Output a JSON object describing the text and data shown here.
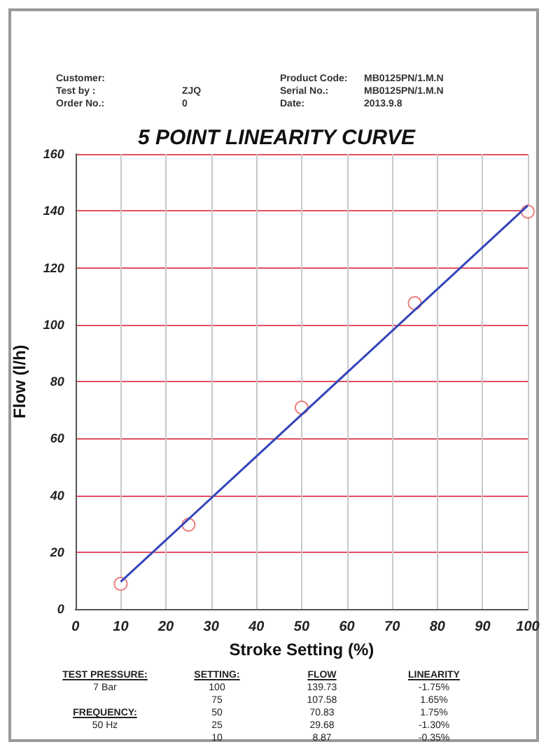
{
  "chart_data": {
    "type": "scatter",
    "title": "5 POINT LINEARITY CURVE",
    "xlabel": "Stroke Setting (%)",
    "ylabel": "Flow (l/h)",
    "annotations": [
      "Customer:",
      "Product Code:",
      "MB0125PN/1.M.N",
      "Test by :",
      "ZJQ",
      "Serial No.:",
      "MB0125PN/1.M.N",
      "Order No.:",
      "0",
      "Date:",
      "2013.9.8",
      "TEST PRESSURE:",
      "SETTING:",
      "FLOW",
      "LINEARITY",
      "7 Bar",
      "100",
      "139.73",
      "-1.75%",
      "75",
      "107.58",
      "1.65%",
      "FREQUENCY:",
      "50",
      "70.83",
      "1.75%",
      "50 Hz",
      "25",
      "29.68",
      "-1.30%",
      "10",
      "8.87",
      "-0.35%"
    ],
    "series": [
      {
        "color": "#e06060",
        "marker": "circle",
        "x": [
          10,
          25,
          50,
          75,
          100
        ],
        "values": [
          8.87,
          29.68,
          70.83,
          107.58,
          139.73
        ]
      },
      {
        "type": "line",
        "color": "#3344bb",
        "marker": "none",
        "x": [
          10,
          100
        ],
        "values": [
          9.6,
          141.9
        ]
      }
    ],
    "xlim": [
      0,
      100
    ],
    "xticks": [
      0,
      10,
      20,
      30,
      40,
      50,
      60,
      70,
      80,
      90,
      100
    ],
    "ylim": [
      0,
      160
    ],
    "yticks": [
      0,
      20,
      40,
      60,
      80,
      100,
      120,
      140,
      160
    ],
    "grid": true
  }
}
